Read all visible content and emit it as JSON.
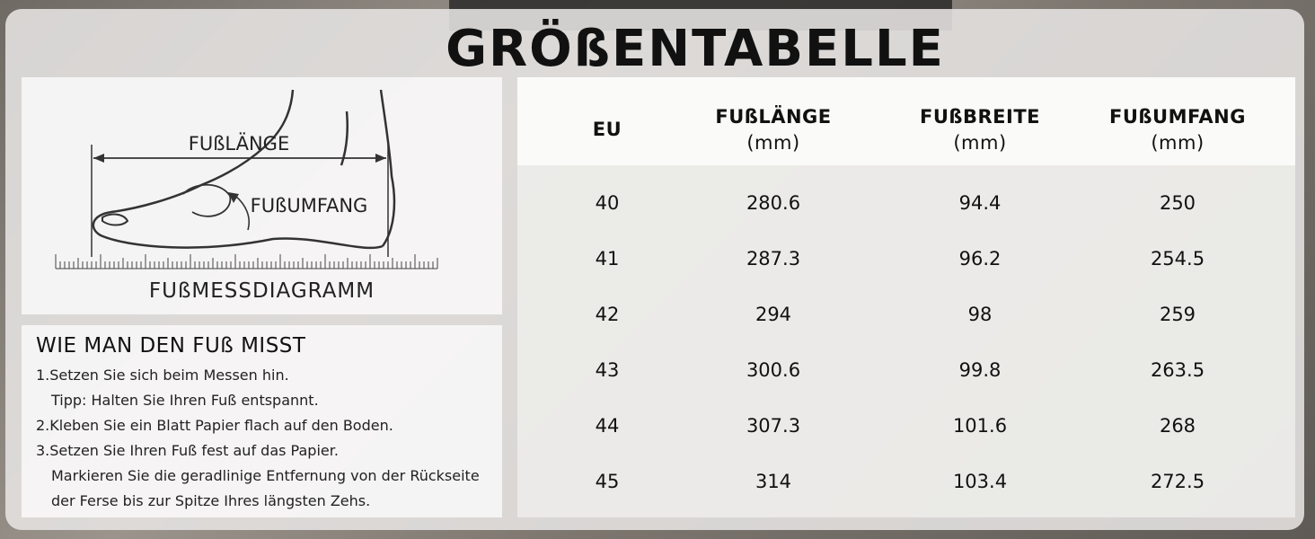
{
  "title": "GRÖßENTABELLE",
  "diagram": {
    "label_length": "FUßLÄNGE",
    "label_girth": "FUßUMFANG",
    "caption": "FUßMESSDIAGRAMM"
  },
  "howto": {
    "title": "WIE MAN DEN FUß MISST",
    "steps": [
      "1.Setzen Sie sich beim Messen hin.",
      "Tipp: Halten Sie Ihren Fuß entspannt.",
      "2.Kleben Sie ein Blatt Papier flach auf den Boden.",
      "3.Setzen Sie Ihren Fuß fest auf das Papier.",
      "Markieren Sie die geradlinige Entfernung von der Rückseite",
      "der Ferse bis zur Spitze Ihres längsten Zehs."
    ]
  },
  "table": {
    "headers": [
      {
        "label": "EU",
        "unit": ""
      },
      {
        "label": "FUßLÄNGE",
        "unit": "(mm)"
      },
      {
        "label": "FUßBREITE",
        "unit": "(mm)"
      },
      {
        "label": "FUßUMFANG",
        "unit": "(mm)"
      }
    ],
    "rows": [
      [
        "40",
        "280.6",
        "94.4",
        "250"
      ],
      [
        "41",
        "287.3",
        "96.2",
        "254.5"
      ],
      [
        "42",
        "294",
        "98",
        "259"
      ],
      [
        "43",
        "300.6",
        "99.8",
        "263.5"
      ],
      [
        "44",
        "307.3",
        "101.6",
        "268"
      ],
      [
        "45",
        "314",
        "103.4",
        "272.5"
      ]
    ]
  }
}
